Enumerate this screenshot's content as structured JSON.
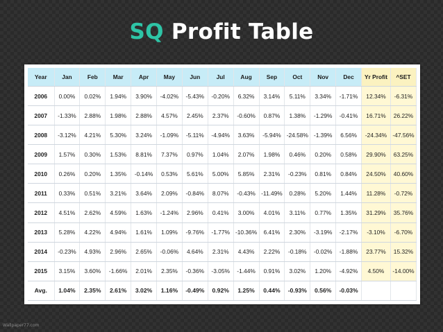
{
  "title": {
    "accent": "SQ",
    "rest": "Profit Table"
  },
  "table": {
    "headers": [
      "Year",
      "Jan",
      "Feb",
      "Mar",
      "Apr",
      "May",
      "Jun",
      "Jul",
      "Aug",
      "Sep",
      "Oct",
      "Nov",
      "Dec",
      "Yr Profit",
      "^SET"
    ],
    "rows": [
      [
        "2006",
        "0.00%",
        "0.02%",
        "1.94%",
        "3.90%",
        "-4.02%",
        "-5.43%",
        "-0.20%",
        "6.32%",
        "3.14%",
        "5.11%",
        "3.34%",
        "-1.71%",
        "12.34%",
        "-6.31%"
      ],
      [
        "2007",
        "-1.33%",
        "2.88%",
        "1.98%",
        "2.88%",
        "4.57%",
        "2.45%",
        "2.37%",
        "-0.60%",
        "0.87%",
        "1.38%",
        "-1.29%",
        "-0.41%",
        "16.71%",
        "26.22%"
      ],
      [
        "2008",
        "-3.12%",
        "4.21%",
        "5.30%",
        "3.24%",
        "-1.09%",
        "-5.11%",
        "-4.94%",
        "3.63%",
        "-5.94%",
        "-24.58%",
        "-1.39%",
        "6.56%",
        "-24.34%",
        "-47.56%"
      ],
      [
        "2009",
        "1.57%",
        "0.30%",
        "1.53%",
        "8.81%",
        "7.37%",
        "0.97%",
        "1.04%",
        "2.07%",
        "1.98%",
        "0.46%",
        "0.20%",
        "0.58%",
        "29.90%",
        "63.25%"
      ],
      [
        "2010",
        "0.26%",
        "0.20%",
        "1.35%",
        "-0.14%",
        "0.53%",
        "5.61%",
        "5.00%",
        "5.85%",
        "2.31%",
        "-0.23%",
        "0.81%",
        "0.84%",
        "24.50%",
        "40.60%"
      ],
      [
        "2011",
        "0.33%",
        "0.51%",
        "3.21%",
        "3.64%",
        "2.09%",
        "-0.84%",
        "8.07%",
        "-0.43%",
        "-11.49%",
        "0.28%",
        "5.20%",
        "1.44%",
        "11.28%",
        "-0.72%"
      ],
      [
        "2012",
        "4.51%",
        "2.62%",
        "4.59%",
        "1.63%",
        "-1.24%",
        "2.96%",
        "0.41%",
        "3.00%",
        "4.01%",
        "3.11%",
        "0.77%",
        "1.35%",
        "31.29%",
        "35.76%"
      ],
      [
        "2013",
        "5.28%",
        "4.22%",
        "4.94%",
        "1.61%",
        "1.09%",
        "-9.76%",
        "-1.77%",
        "-10.36%",
        "6.41%",
        "2.30%",
        "-3.19%",
        "-2.17%",
        "-3.10%",
        "-6.70%"
      ],
      [
        "2014",
        "-0.23%",
        "4.93%",
        "2.96%",
        "2.65%",
        "-0.06%",
        "4.64%",
        "2.31%",
        "4.43%",
        "2.22%",
        "-0.18%",
        "-0.02%",
        "-1.88%",
        "23.77%",
        "15.32%"
      ],
      [
        "2015",
        "3.15%",
        "3.60%",
        "-1.66%",
        "2.01%",
        "2.35%",
        "-0.36%",
        "-3.05%",
        "-1.44%",
        "0.91%",
        "3.02%",
        "1.20%",
        "-4.92%",
        "4.50%",
        "-14.00%"
      ]
    ],
    "avg_row": [
      "Avg.",
      "1.04%",
      "2.35%",
      "2.61%",
      "3.02%",
      "1.16%",
      "-0.49%",
      "0.92%",
      "1.25%",
      "0.44%",
      "-0.93%",
      "0.56%",
      "-0.03%",
      "",
      ""
    ]
  },
  "footer": "Wallpaper77.com",
  "colors": {
    "accent": "#2ec4a6",
    "header_bg": "#c7ecf7",
    "yr_bg": "#fff8d4",
    "background": "#2a2a2a"
  }
}
